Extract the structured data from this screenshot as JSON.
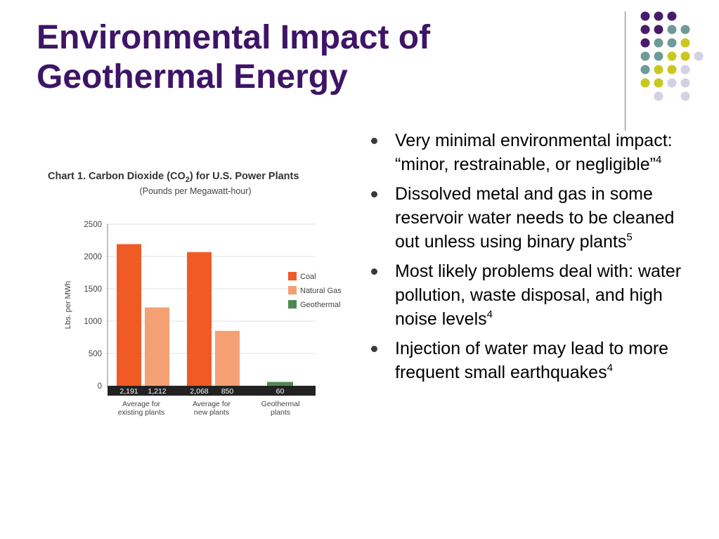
{
  "slide": {
    "title_line1": "Environmental Impact of",
    "title_line2": "Geothermal Energy"
  },
  "bullets": [
    {
      "text": "Very minimal environmental impact: “minor, restrainable, or negligible”",
      "sup": "4"
    },
    {
      "text": "Dissolved metal and gas in some reservoir water needs to be cleaned out unless using binary plants",
      "sup": "5"
    },
    {
      "text": "Most likely problems deal with: water pollution, waste disposal, and high noise levels",
      "sup": "4"
    },
    {
      "text": "Injection of water may lead to more frequent small earthquakes",
      "sup": "4"
    }
  ],
  "colors": {
    "title": "#3d1466",
    "dot_purple": "#4a1a6b",
    "dot_teal": "#6e9b9a",
    "dot_yellow": "#c8c81e",
    "dot_lavender": "#d2d2e4",
    "coal": "#f05a24",
    "natural_gas": "#f5a073",
    "geothermal": "#4d8a52"
  },
  "chart_data": {
    "type": "bar",
    "title": "Chart 1. Carbon Dioxide (CO2) for U.S. Power Plants",
    "subtitle": "(Pounds per Megawatt-hour)",
    "ylabel": "Lbs. per MWh",
    "ylim": [
      0,
      2500
    ],
    "yticks": [
      0,
      500,
      1000,
      1500,
      2000,
      2500
    ],
    "grid": false,
    "legend": "right",
    "categories": [
      "Average for existing plants",
      "Average for new plants",
      "Geothermal plants"
    ],
    "category_lines": [
      [
        "Average for",
        "existing plants"
      ],
      [
        "Average for",
        "new plants"
      ],
      [
        "Geothermal",
        "plants"
      ]
    ],
    "bars": [
      {
        "category": 0,
        "series": "Coal",
        "value": 2191,
        "label": "2,191"
      },
      {
        "category": 0,
        "series": "Natural Gas",
        "value": 1212,
        "label": "1,212"
      },
      {
        "category": 1,
        "series": "Coal",
        "value": 2068,
        "label": "2,068"
      },
      {
        "category": 1,
        "series": "Natural Gas",
        "value": 850,
        "label": "850"
      },
      {
        "category": 2,
        "series": "Geothermal",
        "value": 60,
        "label": "60"
      }
    ],
    "series": [
      {
        "name": "Coal"
      },
      {
        "name": "Natural Gas"
      },
      {
        "name": "Geothermal"
      }
    ]
  }
}
